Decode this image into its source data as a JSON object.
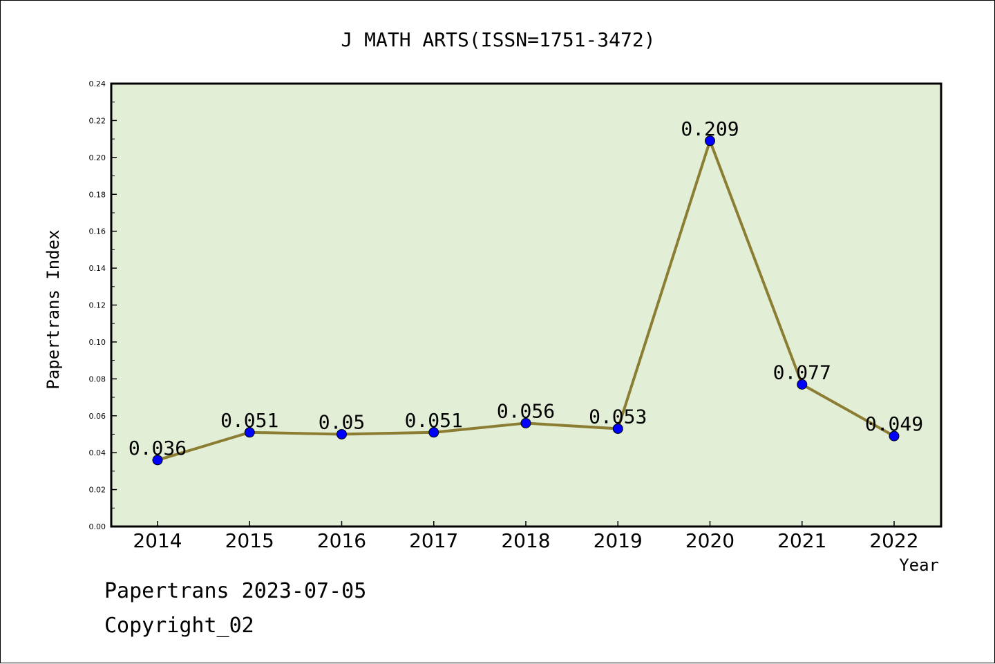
{
  "chart_data": {
    "type": "line",
    "title": "J MATH ARTS(ISSN=1751-3472)",
    "xlabel": "Year",
    "ylabel": "Papertrans Index",
    "categories": [
      "2014",
      "2015",
      "2016",
      "2017",
      "2018",
      "2019",
      "2020",
      "2021",
      "2022"
    ],
    "series": [
      {
        "values": [
          0.036,
          0.051,
          0.05,
          0.051,
          0.056,
          0.053,
          0.209,
          0.077,
          0.049
        ]
      }
    ],
    "data_labels": [
      "0.036",
      "0.051",
      "0.05",
      "0.051",
      "0.056",
      "0.053",
      "0.209",
      "0.077",
      "0.049"
    ],
    "ylim": [
      0,
      0.24
    ],
    "yticks": [
      "0.00",
      "0.02",
      "0.04",
      "0.06",
      "0.08",
      "0.10",
      "0.12",
      "0.14",
      "0.16",
      "0.18",
      "0.20",
      "0.22",
      "0.24"
    ],
    "grid": false,
    "colors": {
      "plot_background": "#e2efd6",
      "line": "#8b7d32",
      "marker": "#0000ff"
    }
  },
  "footer": {
    "line1": "Papertrans 2023-07-05",
    "line2": "Copyright_02"
  }
}
